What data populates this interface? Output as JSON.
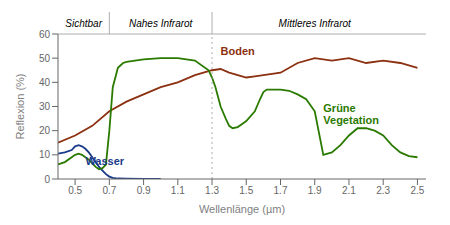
{
  "chart_data": {
    "type": "line",
    "xlabel": "Wellenlänge (µm)",
    "ylabel": "Reflexion (%)",
    "xlim": [
      0.4,
      2.55
    ],
    "ylim": [
      0,
      60
    ],
    "xticks": [
      0.5,
      0.7,
      0.9,
      1.1,
      1.3,
      1.5,
      1.7,
      1.9,
      2.1,
      2.3,
      2.5
    ],
    "yticks": [
      0,
      10,
      20,
      30,
      40,
      50,
      60
    ],
    "series": [
      {
        "name": "Wasser",
        "color": "#1a3a8a",
        "label_x": 0.56,
        "label_y": 7.5,
        "x": [
          0.4,
          0.44,
          0.48,
          0.5,
          0.52,
          0.54,
          0.56,
          0.58,
          0.6,
          0.62,
          0.64,
          0.66,
          0.68,
          0.7,
          0.72,
          0.75,
          0.8,
          0.9,
          1.0
        ],
        "values": [
          10.5,
          11.0,
          12.0,
          13.5,
          14.0,
          13.5,
          12.5,
          11.0,
          9.0,
          7.0,
          5.0,
          3.5,
          2.0,
          1.0,
          0.5,
          0.2,
          0.1,
          0.05,
          0.02
        ]
      },
      {
        "name": "Boden",
        "color": "#8b3010",
        "label_x": 1.35,
        "label_y": 53,
        "x": [
          0.4,
          0.5,
          0.6,
          0.7,
          0.8,
          0.9,
          1.0,
          1.1,
          1.2,
          1.3,
          1.35,
          1.4,
          1.45,
          1.5,
          1.55,
          1.6,
          1.7,
          1.8,
          1.9,
          2.0,
          2.1,
          2.2,
          2.3,
          2.4,
          2.5
        ],
        "values": [
          15,
          18,
          22,
          28,
          32,
          35,
          38,
          40,
          43,
          45,
          45.5,
          44,
          43,
          42,
          42.5,
          43,
          44,
          48,
          50,
          49,
          50,
          48,
          49,
          48,
          46
        ]
      },
      {
        "name": "Grüne\nVegetation",
        "color": "#2a7a00",
        "label_x": 1.95,
        "label_y": 27,
        "x": [
          0.4,
          0.44,
          0.48,
          0.5,
          0.52,
          0.54,
          0.56,
          0.58,
          0.6,
          0.62,
          0.64,
          0.66,
          0.68,
          0.7,
          0.72,
          0.75,
          0.78,
          0.8,
          0.85,
          0.9,
          1.0,
          1.1,
          1.2,
          1.28,
          1.3,
          1.32,
          1.35,
          1.38,
          1.4,
          1.42,
          1.45,
          1.48,
          1.5,
          1.55,
          1.58,
          1.6,
          1.62,
          1.65,
          1.68,
          1.7,
          1.75,
          1.8,
          1.85,
          1.9,
          1.95,
          2.0,
          2.05,
          2.1,
          2.15,
          2.2,
          2.25,
          2.3,
          2.35,
          2.4,
          2.45,
          2.5
        ],
        "values": [
          6,
          7,
          9,
          10,
          10.5,
          10,
          9,
          8,
          6.5,
          5,
          4,
          4.5,
          6,
          20,
          38,
          46,
          48,
          48.5,
          49,
          49.5,
          50,
          50,
          49,
          45,
          42,
          38,
          30,
          25,
          22,
          21,
          21.5,
          23,
          24,
          28,
          33,
          36,
          37,
          37,
          37,
          37,
          36.5,
          35,
          33,
          28,
          10,
          11,
          14,
          18,
          21,
          21,
          20,
          18,
          14,
          11,
          9.5,
          9
        ]
      }
    ],
    "regions": [
      {
        "label": "Sichtbar",
        "center": 0.55
      },
      {
        "label": "Nahes Infrarot",
        "center": 1.0
      },
      {
        "label": "Mittleres Infrarot",
        "center": 1.9
      }
    ],
    "region_dividers": [
      0.7,
      1.3
    ],
    "reference_lines": [
      {
        "x": 1.3,
        "line_style": "dotted"
      }
    ]
  }
}
